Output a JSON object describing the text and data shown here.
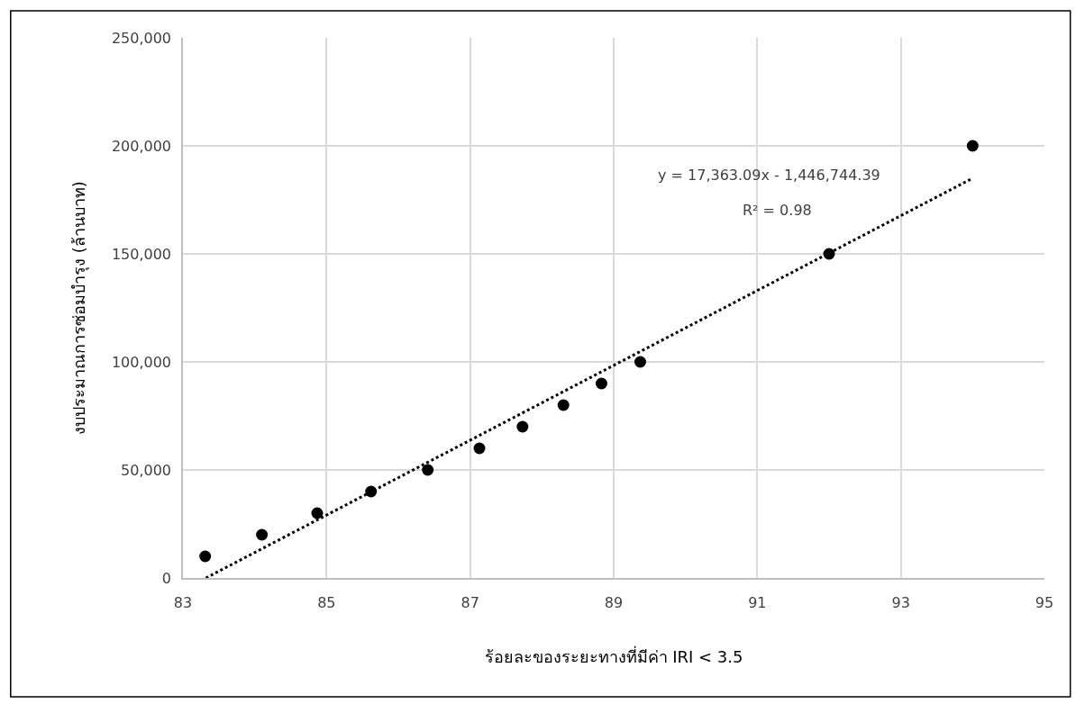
{
  "chart_data": {
    "type": "scatter",
    "xlabel": "ร้อยละของระยะทางที่มีค่า IRI < 3.5",
    "ylabel": "งบประมาณการซ่อมบำรุง (ล้านบาท)",
    "series": [
      {
        "color": "#000000",
        "marker": "circle",
        "x": [
          83.31,
          84.1,
          84.87,
          85.62,
          86.41,
          87.13,
          87.73,
          88.3,
          88.83,
          89.37,
          92.0,
          94.0
        ],
        "values": [
          10000,
          20000,
          30000,
          40000,
          50000,
          60000,
          70000,
          80000,
          90000,
          100000,
          150000,
          200000
        ]
      },
      {
        "type": "line",
        "color": "#000000",
        "marker": "none",
        "line_style": "dotted",
        "x": [
          83.32,
          94.0
        ],
        "values": [
          0,
          185000
        ]
      }
    ],
    "annotations": [
      "y = 17,363.09x - 1,446,744.39",
      "R² = 0.98"
    ],
    "xlim": [
      83,
      95
    ],
    "xticks": [
      83,
      85,
      87,
      89,
      91,
      93,
      95
    ],
    "ylim": [
      0,
      250000
    ],
    "yticks": [
      {
        "value": 0,
        "label": "0"
      },
      {
        "value": 50000,
        "label": "50,000"
      },
      {
        "value": 100000,
        "label": "100,000"
      },
      {
        "value": 150000,
        "label": "150,000"
      },
      {
        "value": 200000,
        "label": "200,000"
      },
      {
        "value": 250000,
        "label": "250,000"
      }
    ],
    "grid": true
  }
}
